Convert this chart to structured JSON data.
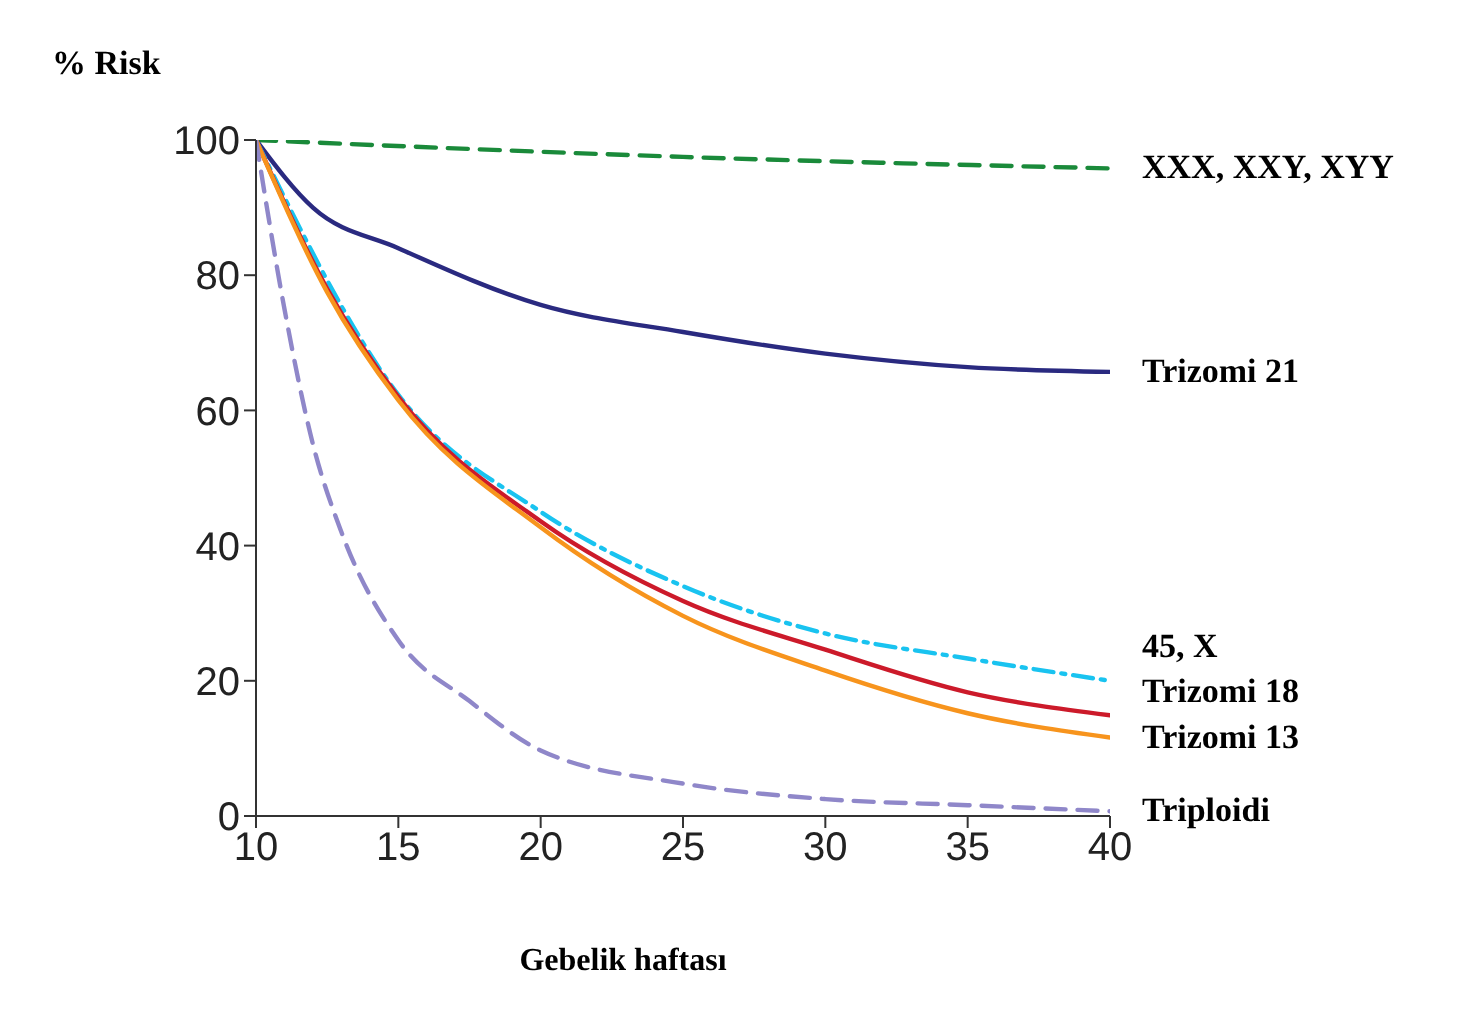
{
  "chart_data": {
    "type": "line",
    "title": "% Risk",
    "xlabel": "Gebelik haftası",
    "xlim": [
      10,
      40
    ],
    "xticks": [
      10,
      15,
      20,
      25,
      30,
      35,
      40
    ],
    "ylim": [
      0,
      100
    ],
    "yticks": [
      0,
      20,
      40,
      60,
      80,
      100
    ],
    "grid": false,
    "legend": false,
    "marker": "none",
    "series": [
      {
        "name": "XXX, XXY, XYY",
        "color": "#1a8a3a",
        "line_style": "dashed",
        "x": [
          10,
          25,
          40
        ],
        "values": [
          100,
          97.5,
          95.8
        ]
      },
      {
        "name": "Trizomi 21",
        "color": "#2a2a80",
        "line_style": "solid",
        "x": [
          10,
          12,
          15,
          20,
          25,
          30,
          35,
          40
        ],
        "values": [
          100,
          90,
          84,
          75.6,
          71.6,
          68.4,
          66.4,
          65.7
        ]
      },
      {
        "name": "45, X",
        "color": "#19c3f0",
        "line_style": "dashdot",
        "x": [
          10,
          15,
          20,
          25,
          30,
          35,
          40
        ],
        "values": [
          100,
          62.3,
          45,
          34,
          27,
          23.3,
          20
        ]
      },
      {
        "name": "Trizomi 18",
        "color": "#cc1a2a",
        "line_style": "solid",
        "x": [
          10,
          12.5,
          15,
          20,
          25,
          30,
          35,
          40
        ],
        "values": [
          100,
          78,
          62,
          43.6,
          31.8,
          24.6,
          18.3,
          14.9
        ]
      },
      {
        "name": "Trizomi 13",
        "color": "#f7941d",
        "line_style": "solid",
        "x": [
          10,
          12.5,
          15,
          20,
          25,
          30,
          35,
          40
        ],
        "values": [
          100,
          77.5,
          61.5,
          42.7,
          29.6,
          21.5,
          15.2,
          11.6
        ]
      },
      {
        "name": "Triploidi",
        "color": "#8f87c9",
        "line_style": "dashed",
        "x": [
          10,
          11,
          12,
          13,
          15,
          17.5,
          20,
          25,
          30,
          35,
          40
        ],
        "values": [
          100,
          75,
          55,
          42,
          26,
          17,
          9.7,
          4.8,
          2.5,
          1.6,
          0.7
        ]
      }
    ]
  }
}
